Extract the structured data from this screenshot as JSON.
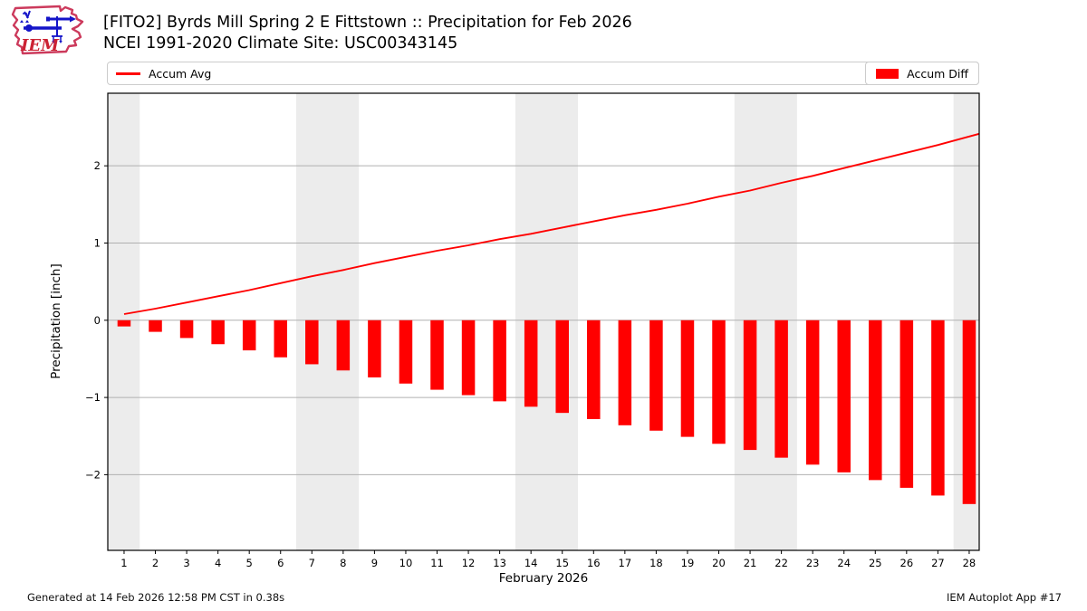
{
  "header": {
    "title": "[FITO2] Byrds Mill Spring 2 E Fittstown :: Precipitation for Feb 2026",
    "subtitle": "NCEI 1991-2020 Climate Site: USC00343145"
  },
  "logo": {
    "text": "IEM"
  },
  "legend": {
    "line_label": "Accum Avg",
    "bar_label": "Accum Diff"
  },
  "footer": {
    "generated": "Generated at 14 Feb 2026 12:58 PM CST in 0.38s",
    "app": "IEM Autoplot App #17"
  },
  "colors": {
    "accent": "#ff0000",
    "weekend_band": "#ececec",
    "grid": "#b0b0b0",
    "spine": "#000000",
    "legend_border": "#cccccc",
    "logo_outline": "#cc3a5c",
    "logo_instrument": "#1414c8",
    "logo_text": "#cc2233"
  },
  "chart_data": {
    "type": "bar",
    "title": "[FITO2] Byrds Mill Spring 2 E Fittstown :: Precipitation for Feb 2026",
    "subtitle": "NCEI 1991-2020 Climate Site: USC00343145",
    "xlabel": "February 2026",
    "ylabel": "Precipitation [inch]",
    "x": [
      1,
      2,
      3,
      4,
      5,
      6,
      7,
      8,
      9,
      10,
      11,
      12,
      13,
      14,
      15,
      16,
      17,
      18,
      19,
      20,
      21,
      22,
      23,
      24,
      25,
      26,
      27,
      28
    ],
    "xticks": [
      1,
      2,
      3,
      4,
      5,
      6,
      7,
      8,
      9,
      10,
      11,
      12,
      13,
      14,
      15,
      16,
      17,
      18,
      19,
      20,
      21,
      22,
      23,
      24,
      25,
      26,
      27,
      28
    ],
    "yticks": [
      -2,
      -1,
      0,
      1,
      2
    ],
    "xlim": [
      0.48,
      28.32
    ],
    "ylim": [
      -2.98,
      2.94
    ],
    "grid": "horizontal",
    "legend_position": "top",
    "bar_width": 0.42,
    "weekend_bands": [
      [
        0.48,
        1.5
      ],
      [
        6.5,
        8.5
      ],
      [
        13.5,
        15.5
      ],
      [
        20.5,
        22.5
      ],
      [
        27.5,
        28.32
      ]
    ],
    "series": [
      {
        "name": "Accum Avg",
        "type": "line",
        "color": "#ff0000",
        "values": [
          0.08,
          0.15,
          0.23,
          0.31,
          0.39,
          0.48,
          0.57,
          0.65,
          0.74,
          0.82,
          0.9,
          0.97,
          1.05,
          1.12,
          1.2,
          1.28,
          1.36,
          1.43,
          1.51,
          1.6,
          1.68,
          1.78,
          1.87,
          1.97,
          2.07,
          2.17,
          2.27,
          2.38
        ]
      },
      {
        "name": "Accum Diff",
        "type": "bar",
        "color": "#ff0000",
        "values": [
          -0.08,
          -0.15,
          -0.23,
          -0.31,
          -0.39,
          -0.48,
          -0.57,
          -0.65,
          -0.74,
          -0.82,
          -0.9,
          -0.97,
          -1.05,
          -1.12,
          -1.2,
          -1.28,
          -1.36,
          -1.43,
          -1.51,
          -1.6,
          -1.68,
          -1.78,
          -1.87,
          -1.97,
          -2.07,
          -2.17,
          -2.27,
          -2.38
        ]
      }
    ]
  }
}
